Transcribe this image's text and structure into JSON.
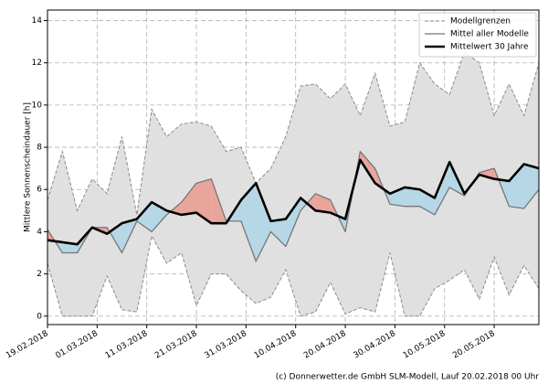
{
  "chart_data": {
    "type": "line",
    "ylabel": "Mittlere Sonnenscheindauer [h]",
    "source": "(c) Donnerwetter.de GmbH SLM-Modell, Lauf 20.02.2018 00 Uhr",
    "x": [
      "2018-02-19",
      "2018-02-22",
      "2018-02-25",
      "2018-02-28",
      "2018-03-03",
      "2018-03-06",
      "2018-03-09",
      "2018-03-12",
      "2018-03-15",
      "2018-03-18",
      "2018-03-21",
      "2018-03-24",
      "2018-03-27",
      "2018-03-30",
      "2018-04-02",
      "2018-04-05",
      "2018-04-08",
      "2018-04-11",
      "2018-04-14",
      "2018-04-17",
      "2018-04-20",
      "2018-04-23",
      "2018-04-26",
      "2018-04-29",
      "2018-05-02",
      "2018-05-05",
      "2018-05-08",
      "2018-05-11",
      "2018-05-14",
      "2018-05-17",
      "2018-05-20",
      "2018-05-23",
      "2018-05-26",
      "2018-05-29"
    ],
    "range": {
      "name": "Modellgrenzen",
      "color": "#8c8c8c",
      "fill": "#e0e0e0",
      "upper": [
        5.5,
        7.8,
        5.0,
        6.5,
        5.8,
        8.5,
        4.8,
        9.8,
        8.5,
        9.1,
        9.2,
        9.0,
        7.8,
        8.0,
        6.3,
        7.0,
        8.5,
        10.9,
        11.0,
        10.3,
        11.0,
        9.5,
        11.5,
        9.0,
        9.2,
        12.0,
        11.0,
        10.5,
        12.5,
        12.0,
        9.5,
        11.0,
        9.5,
        12.0
      ],
      "lower": [
        2.5,
        0.0,
        0.0,
        0.0,
        1.9,
        0.3,
        0.2,
        3.8,
        2.5,
        3.0,
        0.5,
        2.0,
        2.0,
        1.2,
        0.6,
        0.9,
        2.2,
        0.0,
        0.2,
        1.6,
        0.1,
        0.4,
        0.2,
        3.0,
        0.0,
        0.0,
        1.3,
        1.7,
        2.2,
        0.8,
        2.8,
        1.0,
        2.4,
        1.3
      ]
    },
    "series": [
      {
        "name": "Mittel aller Modelle",
        "color": "#777777",
        "width": 1.3,
        "values": [
          4.1,
          3.0,
          3.0,
          4.2,
          4.2,
          3.0,
          4.5,
          4.0,
          4.8,
          5.4,
          6.3,
          6.5,
          4.5,
          4.5,
          2.6,
          4.0,
          3.3,
          5.0,
          5.8,
          5.5,
          4.0,
          7.8,
          7.0,
          5.3,
          5.2,
          5.2,
          4.8,
          6.1,
          5.7,
          6.8,
          7.0,
          5.2,
          5.1,
          6.0
        ]
      },
      {
        "name": "Mittelwert 30 Jahre",
        "color": "#000000",
        "width": 2.6,
        "values": [
          3.6,
          3.5,
          3.4,
          4.2,
          3.9,
          4.4,
          4.6,
          5.4,
          5.0,
          4.8,
          4.9,
          4.4,
          4.4,
          5.5,
          6.3,
          4.5,
          4.6,
          5.6,
          5.0,
          4.9,
          4.6,
          7.4,
          6.3,
          5.8,
          6.1,
          6.0,
          5.6,
          7.3,
          5.8,
          6.7,
          6.5,
          6.4,
          7.2,
          7.0
        ]
      }
    ],
    "fill_above_color": "#e8a59c",
    "fill_below_color": "#b5d7e6",
    "xlim": [
      "2018-02-19",
      "2018-05-29"
    ],
    "xticks": [
      {
        "value": "2018-02-19",
        "label": "19.02.2018"
      },
      {
        "value": "2018-03-01",
        "label": "01.03.2018"
      },
      {
        "value": "2018-03-11",
        "label": "11.03.2018"
      },
      {
        "value": "2018-03-21",
        "label": "21.03.2018"
      },
      {
        "value": "2018-03-31",
        "label": "31.03.2018"
      },
      {
        "value": "2018-04-10",
        "label": "10.04.2018"
      },
      {
        "value": "2018-04-20",
        "label": "20.04.2018"
      },
      {
        "value": "2018-04-30",
        "label": "30.04.2018"
      },
      {
        "value": "2018-05-10",
        "label": "10.05.2018"
      },
      {
        "value": "2018-05-20",
        "label": "20.05.2018"
      }
    ],
    "ylim": [
      -0.4,
      14.5
    ],
    "yticks": [
      0,
      2,
      4,
      6,
      8,
      10,
      12,
      14
    ],
    "grid": true,
    "legend": "upper right"
  }
}
